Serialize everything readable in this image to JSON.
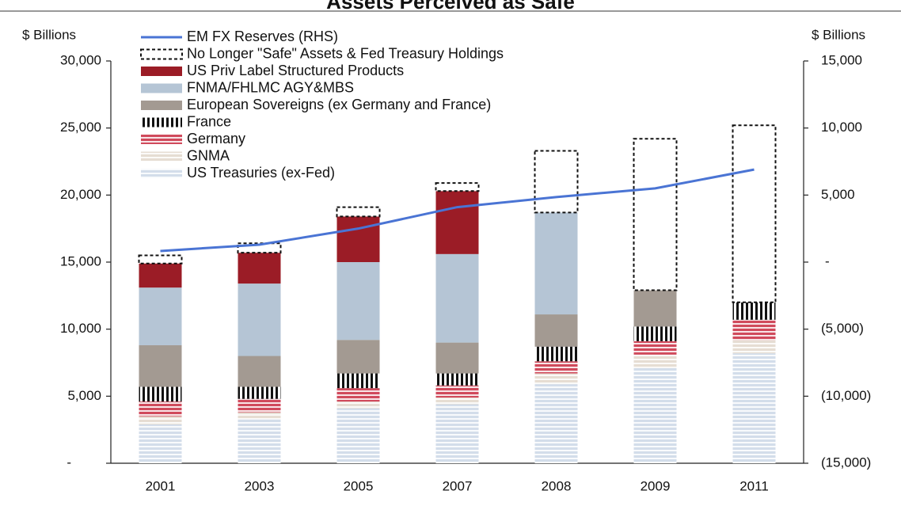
{
  "chart_data": {
    "type": "bar",
    "title": "Assets Perceived as Safe",
    "ylabel": "$ Billions",
    "y2label": "$ Billions",
    "categories": [
      "2001",
      "2003",
      "2005",
      "2007",
      "2008",
      "2009",
      "2011"
    ],
    "series": [
      {
        "name": "US Treasuries (ex-Fed)",
        "color": "#d3ddea",
        "pattern": "hstripe",
        "values": [
          2900,
          3300,
          4100,
          4400,
          5900,
          7100,
          8200
        ]
      },
      {
        "name": "GNMA",
        "color": "#e6ddd3",
        "pattern": "hstripe",
        "values": [
          600,
          500,
          500,
          500,
          800,
          1000,
          1000
        ]
      },
      {
        "name": "Germany",
        "color": "#d04a5c",
        "pattern": "hstripe",
        "values": [
          1100,
          1000,
          1000,
          900,
          900,
          1000,
          1500
        ]
      },
      {
        "name": "France",
        "color": "#111111",
        "pattern": "vstripe",
        "values": [
          1100,
          900,
          1100,
          900,
          1100,
          1100,
          1300
        ]
      },
      {
        "name": "European Sovereigns (ex Germany and France)",
        "color": "#a39a92",
        "values": [
          3100,
          2300,
          2500,
          2300,
          2400,
          2700,
          0
        ]
      },
      {
        "name": "FNMA/FHLMC AGY&MBS",
        "color": "#b5c5d5",
        "values": [
          4300,
          5400,
          5800,
          6600,
          7600,
          0,
          0
        ]
      },
      {
        "name": "US Priv Label Structured Products",
        "color": "#9b1c26",
        "values": [
          1800,
          2300,
          3400,
          4700,
          0,
          0,
          0
        ]
      },
      {
        "name": "No Longer \"Safe\" Assets & Fed Treasury Holdings",
        "color": "#111111",
        "pattern": "dashed",
        "values": [
          600,
          700,
          700,
          600,
          4600,
          11300,
          13200
        ]
      },
      {
        "name": "EM FX Reserves (RHS)",
        "color": "#4a74d4",
        "type": "line",
        "axis": "y2",
        "values": [
          830,
          1300,
          2500,
          4100,
          4850,
          5500,
          6900
        ]
      }
    ],
    "ylim": [
      0,
      30000
    ],
    "yticks": [
      {
        "value": 0,
        "label": "-"
      },
      {
        "value": 5000,
        "label": "5,000"
      },
      {
        "value": 10000,
        "label": "10,000"
      },
      {
        "value": 15000,
        "label": "15,000"
      },
      {
        "value": 20000,
        "label": "20,000"
      },
      {
        "value": 25000,
        "label": "25,000"
      },
      {
        "value": 30000,
        "label": "30,000"
      }
    ],
    "y2lim": [
      -15000,
      15000
    ],
    "y2ticks": [
      {
        "value": -15000,
        "label": "(15,000)"
      },
      {
        "value": -10000,
        "label": "(10,000)"
      },
      {
        "value": -5000,
        "label": "(5,000)"
      },
      {
        "value": 0,
        "label": "-"
      },
      {
        "value": 5000,
        "label": "5,000"
      },
      {
        "value": 10000,
        "label": "10,000"
      },
      {
        "value": 15000,
        "label": "15,000"
      }
    ],
    "legend": "upper-left"
  }
}
